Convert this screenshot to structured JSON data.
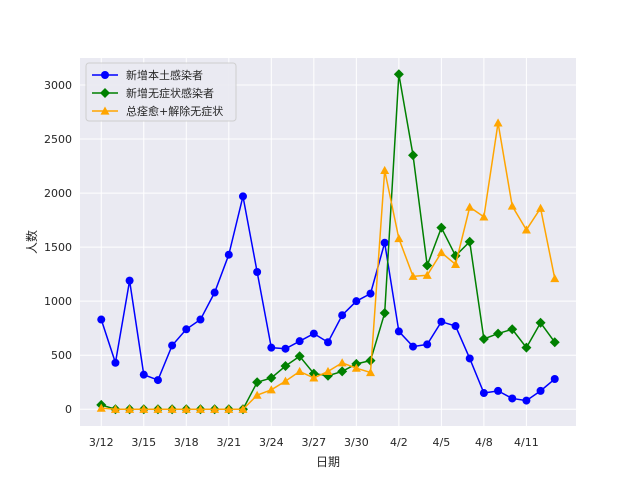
{
  "chart_data": {
    "type": "line",
    "xlabel": "日期",
    "ylabel": "人数",
    "x_tick_labels": [
      "3/12",
      "3/15",
      "3/18",
      "3/21",
      "3/24",
      "3/27",
      "3/30",
      "4/2",
      "4/5",
      "4/8",
      "4/11"
    ],
    "x_tick_positions": [
      0,
      3,
      6,
      9,
      12,
      15,
      18,
      21,
      24,
      27,
      30
    ],
    "y_ticks": [
      0,
      500,
      1000,
      1500,
      2000,
      2500,
      3000
    ],
    "xlim": [
      -1.5,
      33.5
    ],
    "ylim": [
      -155,
      3250
    ],
    "grid": true,
    "legend_position": "top-left",
    "x": [
      "3/12",
      "3/13",
      "3/14",
      "3/15",
      "3/16",
      "3/17",
      "3/18",
      "3/19",
      "3/20",
      "3/21",
      "3/22",
      "3/23",
      "3/24",
      "3/25",
      "3/26",
      "3/27",
      "3/28",
      "3/29",
      "3/30",
      "3/31",
      "4/1",
      "4/2",
      "4/3",
      "4/4",
      "4/5",
      "4/6",
      "4/7",
      "4/8",
      "4/9",
      "4/10",
      "4/11",
      "4/12",
      "4/13"
    ],
    "series": [
      {
        "name": "新增本土感染者",
        "color": "#0000ff",
        "marker": "circle",
        "values": [
          830,
          430,
          1190,
          320,
          270,
          590,
          740,
          830,
          1080,
          1430,
          1970,
          1270,
          570,
          560,
          630,
          700,
          620,
          870,
          1000,
          1070,
          1540,
          720,
          580,
          600,
          810,
          770,
          470,
          150,
          170,
          100,
          80,
          170,
          280
        ]
      },
      {
        "name": "新增无症状感染者",
        "color": "#008000",
        "marker": "diamond",
        "values": [
          40,
          0,
          0,
          0,
          0,
          0,
          0,
          0,
          0,
          0,
          0,
          250,
          290,
          400,
          490,
          330,
          310,
          350,
          420,
          450,
          890,
          3100,
          2350,
          1330,
          1680,
          1420,
          1550,
          650,
          700,
          740,
          570,
          800,
          620
        ]
      },
      {
        "name": "总痊愈+解除无症状",
        "color": "#ffa500",
        "marker": "triangle",
        "values": [
          10,
          0,
          0,
          0,
          0,
          0,
          0,
          0,
          0,
          0,
          0,
          130,
          180,
          260,
          350,
          290,
          350,
          430,
          380,
          340,
          2210,
          1580,
          1230,
          1240,
          1450,
          1340,
          1870,
          1780,
          2650,
          1880,
          1660,
          1860,
          1210
        ]
      }
    ]
  }
}
